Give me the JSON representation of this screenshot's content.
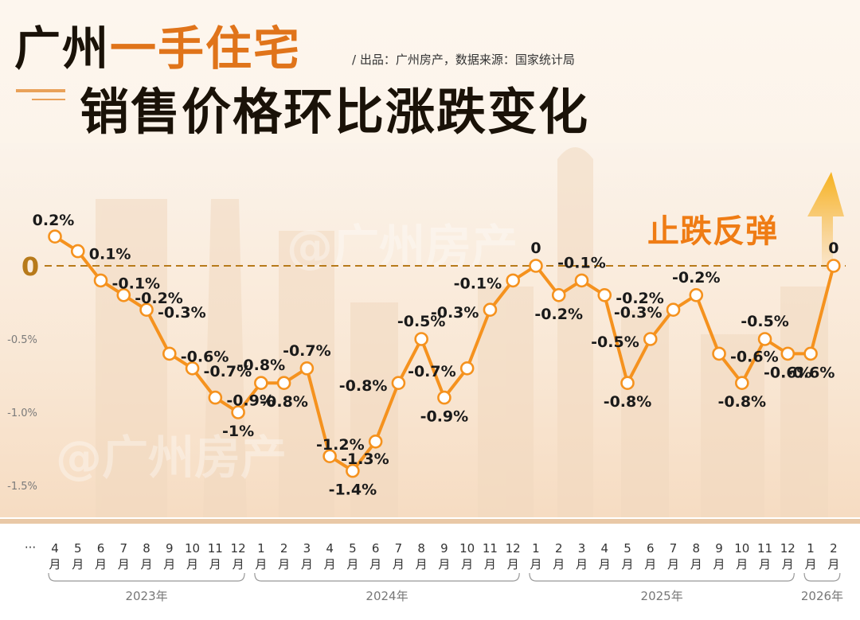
{
  "title": {
    "line1_prefix": "广州",
    "line1_highlight": "一手住宅",
    "line2": "销售价格环比涨跌变化",
    "credit": "/ 出品：广州房产，数据来源：国家统计局"
  },
  "badge": "止跌反弹",
  "watermark": "@广州房产",
  "colors": {
    "line": "#f5921e",
    "accent": "#e0741a",
    "zero_line": "#b77a1a",
    "badge": "#ef7c14"
  },
  "chart_data": {
    "type": "line",
    "title": "广州一手住宅销售价格环比涨跌变化",
    "xlabel": "",
    "ylabel": "",
    "ylim": [
      -1.5,
      0.2
    ],
    "grid": false,
    "zero_label": "0",
    "yticks": [
      {
        "value": -0.5,
        "label": "-0.5%"
      },
      {
        "value": -1.0,
        "label": "-1.0%"
      },
      {
        "value": -1.5,
        "label": "-1.5%"
      }
    ],
    "ellipsis": "···",
    "month_char": "月",
    "months": [
      "4",
      "5",
      "6",
      "7",
      "8",
      "9",
      "10",
      "11",
      "12",
      "1",
      "2",
      "3",
      "4",
      "5",
      "6",
      "7",
      "8",
      "9",
      "10",
      "11",
      "12",
      "1",
      "2",
      "3",
      "4",
      "5",
      "6",
      "7",
      "8",
      "9",
      "10",
      "11",
      "12",
      "1",
      "2"
    ],
    "years": [
      {
        "label": "2023年",
        "from": 0,
        "to": 8
      },
      {
        "label": "2024年",
        "from": 9,
        "to": 20
      },
      {
        "label": "2025年",
        "from": 21,
        "to": 32
      },
      {
        "label": "2026年",
        "from": 33,
        "to": 34
      }
    ],
    "values": [
      0.2,
      0.1,
      -0.1,
      -0.2,
      -0.3,
      -0.6,
      -0.7,
      -0.9,
      -1.0,
      -0.8,
      -0.8,
      -0.7,
      -1.3,
      -1.4,
      -1.2,
      -0.8,
      -0.5,
      -0.9,
      -0.7,
      -0.3,
      -0.1,
      0,
      -0.2,
      -0.1,
      -0.2,
      -0.8,
      -0.5,
      -0.3,
      -0.2,
      -0.6,
      -0.8,
      -0.5,
      -0.6,
      -0.6,
      0
    ],
    "labels": [
      "0.2%",
      "0.1%",
      "-0.1%",
      "-0.2%",
      "-0.3%",
      "-0.6%",
      "-0.7%",
      "-0.9%",
      "-1%",
      "-0.8%",
      "-0.8%",
      "-0.7%",
      "-1.3%",
      "-1.4%",
      "-1.2%",
      "-0.8%",
      "-0.5%",
      "-0.9%",
      "-0.7%",
      "-0.3%",
      "-0.1%",
      "0",
      "-0.2%",
      "-0.1%",
      "-0.2%",
      "-0.8%",
      "-0.5%",
      "-0.3%",
      "-0.2%",
      "-0.6%",
      "-0.8%",
      "-0.5%",
      "-0.6%",
      "-0.6%",
      "0"
    ]
  }
}
